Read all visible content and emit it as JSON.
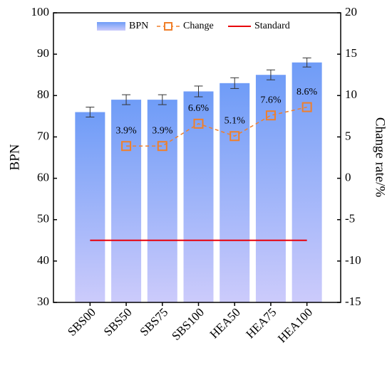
{
  "chart_data": {
    "type": "bar",
    "categories": [
      "SBS00",
      "SBS50",
      "SBS75",
      "SBS100",
      "HEA50",
      "HEA75",
      "HEA100"
    ],
    "series": [
      {
        "name": "BPN",
        "color": "#6f9cf7",
        "values": [
          76,
          79,
          79,
          81,
          83,
          85,
          88
        ],
        "errors": [
          1.2,
          1.2,
          1.2,
          1.3,
          1.3,
          1.2,
          1.1
        ]
      },
      {
        "name": "Change",
        "color": "#f07f2a",
        "axis": "y2",
        "values": [
          null,
          3.9,
          3.9,
          6.6,
          5.1,
          7.6,
          8.6
        ],
        "value_labels": [
          null,
          "3.9%",
          "3.9%",
          "6.6%",
          "5.1%",
          "7.6%",
          "8.6%"
        ]
      },
      {
        "name": "Standard",
        "color": "#e8000b",
        "values": [
          45,
          45,
          45,
          45,
          45,
          45,
          45
        ]
      }
    ],
    "y_label": "BPN",
    "y2_label": "Change rate/%",
    "ylim": [
      30,
      100
    ],
    "yticks": [
      30,
      40,
      50,
      60,
      70,
      80,
      90,
      100
    ],
    "y2lim": [
      -15,
      20
    ],
    "y2ticks": [
      -15,
      -10,
      -5,
      0,
      5,
      10,
      15,
      20
    ],
    "legend": "top"
  }
}
